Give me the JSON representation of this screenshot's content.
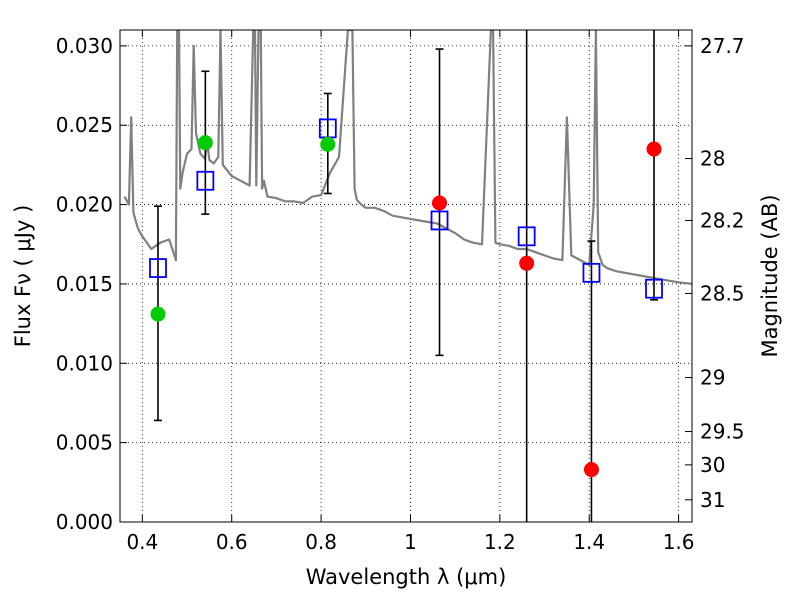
{
  "chart_data": {
    "type": "scatter",
    "title": "",
    "xlabel": "Wavelength  λ (μm)",
    "ylabel": "Flux  Fν  ( μJy )",
    "y2label": "Magnitude (AB)",
    "xlim": [
      0.35,
      1.63
    ],
    "ylim": [
      0.0,
      0.031
    ],
    "grid": true,
    "grid_style": "dotted",
    "x_ticks": [
      0.4,
      0.6,
      0.8,
      1.0,
      1.2,
      1.4,
      1.6
    ],
    "x_tick_labels": [
      "0.4",
      "0.6",
      "0.8",
      "1",
      "1.2",
      "1.4",
      "1.6"
    ],
    "y_ticks": [
      0.0,
      0.005,
      0.01,
      0.015,
      0.02,
      0.025,
      0.03
    ],
    "y_tick_labels": [
      "0.000",
      "0.005",
      "0.010",
      "0.015",
      "0.020",
      "0.025",
      "0.030"
    ],
    "y2_ticks": [
      {
        "label": "27.7",
        "flux": 0.03
      },
      {
        "label": "28",
        "flux": 0.0229
      },
      {
        "label": "28.2",
        "flux": 0.019
      },
      {
        "label": "28.5",
        "flux": 0.0144
      },
      {
        "label": "29",
        "flux": 0.0091
      },
      {
        "label": "29.5",
        "flux": 0.0057
      },
      {
        "label": "30",
        "flux": 0.0036
      },
      {
        "label": "31",
        "flux": 0.0014
      }
    ],
    "series": [
      {
        "kind": "line",
        "color": "#808080",
        "x": [
          0.36,
          0.37,
          0.375,
          0.38,
          0.39,
          0.4,
          0.42,
          0.44,
          0.46,
          0.475,
          0.478,
          0.482,
          0.485,
          0.49,
          0.5,
          0.51,
          0.515,
          0.52,
          0.53,
          0.54,
          0.545,
          0.55,
          0.56,
          0.57,
          0.575,
          0.58,
          0.6,
          0.62,
          0.64,
          0.648,
          0.652,
          0.655,
          0.66,
          0.665,
          0.668,
          0.672,
          0.68,
          0.7,
          0.72,
          0.74,
          0.76,
          0.78,
          0.8,
          0.82,
          0.84,
          0.86,
          0.87,
          0.875,
          0.88,
          0.89,
          0.9,
          0.92,
          0.94,
          0.96,
          0.98,
          1.0,
          1.02,
          1.04,
          1.06,
          1.08,
          1.1,
          1.12,
          1.14,
          1.16,
          1.18,
          1.185,
          1.19,
          1.2,
          1.22,
          1.24,
          1.26,
          1.28,
          1.3,
          1.32,
          1.34,
          1.35,
          1.36,
          1.38,
          1.4,
          1.41,
          1.415,
          1.42,
          1.43,
          1.44,
          1.46,
          1.48,
          1.5,
          1.52,
          1.54,
          1.56,
          1.58,
          1.6,
          1.63
        ],
        "y": [
          0.0205,
          0.02,
          0.0255,
          0.0195,
          0.0185,
          0.018,
          0.0172,
          0.0176,
          0.0178,
          0.0165,
          0.031,
          0.031,
          0.021,
          0.022,
          0.0232,
          0.0235,
          0.03,
          0.0245,
          0.0232,
          0.0229,
          0.024,
          0.0228,
          0.0226,
          0.023,
          0.031,
          0.0225,
          0.0218,
          0.0215,
          0.0212,
          0.031,
          0.031,
          0.0212,
          0.031,
          0.031,
          0.021,
          0.0215,
          0.0205,
          0.0204,
          0.0202,
          0.0202,
          0.0201,
          0.0205,
          0.0206,
          0.022,
          0.023,
          0.031,
          0.031,
          0.021,
          0.0203,
          0.02,
          0.0198,
          0.0198,
          0.0196,
          0.0193,
          0.0192,
          0.0191,
          0.019,
          0.0189,
          0.0188,
          0.0185,
          0.0182,
          0.0178,
          0.0176,
          0.0175,
          0.031,
          0.031,
          0.0176,
          0.0175,
          0.0174,
          0.0172,
          0.0172,
          0.017,
          0.0168,
          0.0166,
          0.0165,
          0.0255,
          0.0168,
          0.0165,
          0.0162,
          0.02,
          0.031,
          0.017,
          0.0162,
          0.016,
          0.0158,
          0.0157,
          0.0156,
          0.0155,
          0.0154,
          0.0153,
          0.0152,
          0.0151,
          0.015
        ]
      },
      {
        "kind": "squares",
        "color": "#0000ff",
        "x": [
          0.435,
          0.541,
          0.815,
          1.065,
          1.26,
          1.405,
          1.545
        ],
        "y": [
          0.016,
          0.0215,
          0.0248,
          0.019,
          0.018,
          0.0157,
          0.0147
        ]
      },
      {
        "kind": "points",
        "color": "#00cc00",
        "x": [
          0.435,
          0.541,
          0.815
        ],
        "y": [
          0.0131,
          0.0239,
          0.0238
        ]
      },
      {
        "kind": "points",
        "color": "#ff0000",
        "x": [
          1.065,
          1.26,
          1.405,
          1.545
        ],
        "y": [
          0.0201,
          0.0163,
          0.0033,
          0.0235
        ]
      }
    ],
    "error_bars": [
      {
        "x": 0.435,
        "low": 0.0064,
        "high": 0.0199
      },
      {
        "x": 0.541,
        "low": 0.0194,
        "high": 0.0284
      },
      {
        "x": 0.815,
        "low": 0.0207,
        "high": 0.027
      },
      {
        "x": 1.065,
        "low": 0.0105,
        "high": 0.0298
      },
      {
        "x": 1.26,
        "low": 0.0,
        "high": 0.031
      },
      {
        "x": 1.405,
        "low": 0.0,
        "high": 0.0177
      },
      {
        "x": 1.545,
        "low": 0.014,
        "high": 0.031
      }
    ]
  }
}
